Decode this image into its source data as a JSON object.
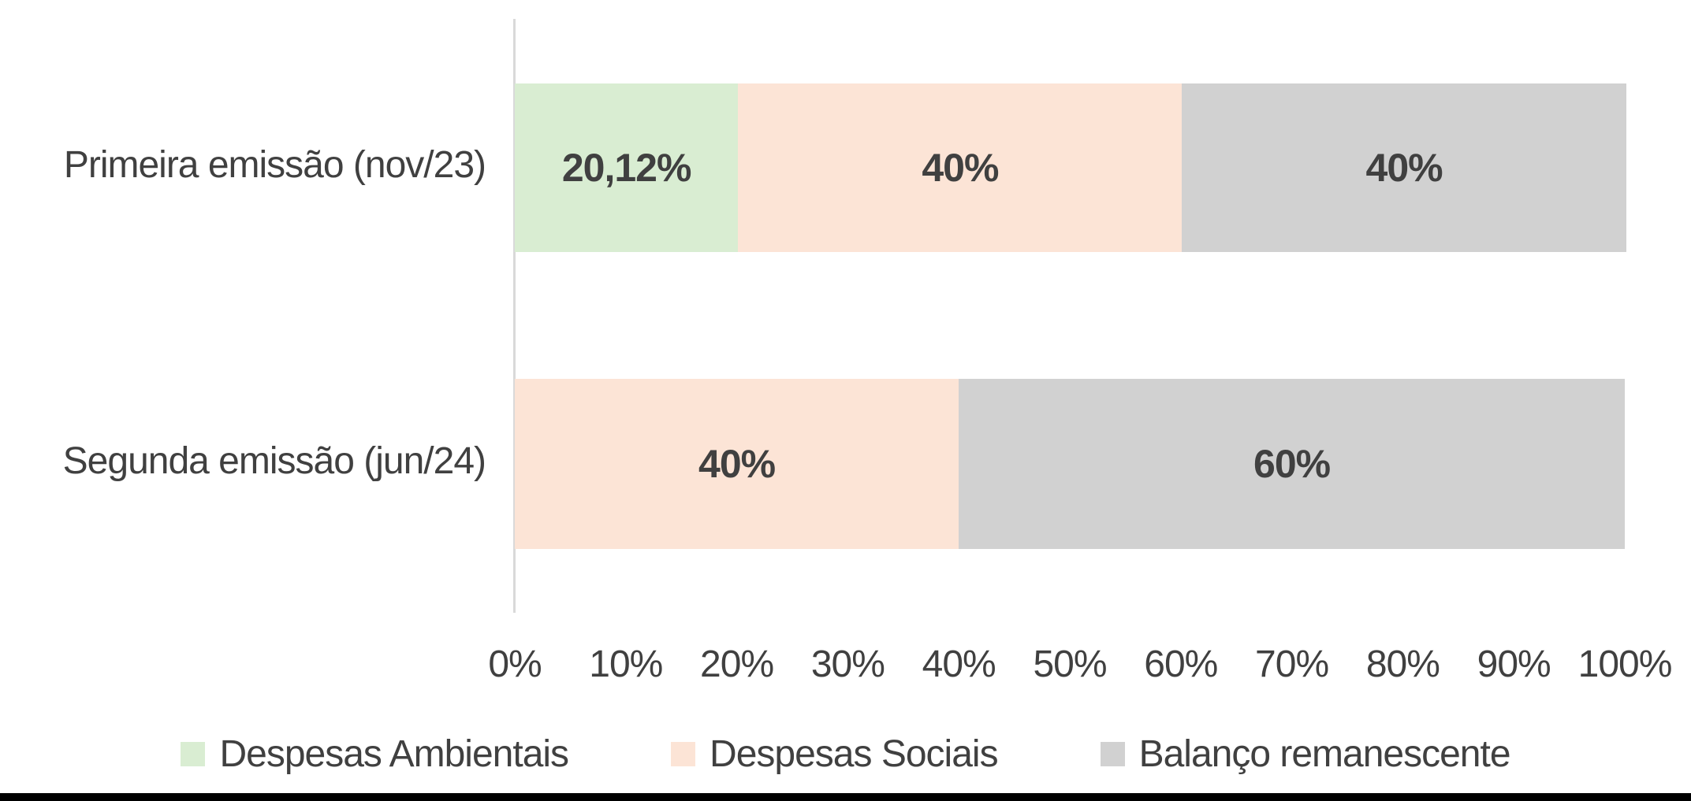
{
  "page": {
    "background_color": "#ffffff",
    "footer_bar_color": "#000000"
  },
  "chart_data": {
    "type": "bar",
    "orientation": "horizontal",
    "stacked": true,
    "categories": [
      "Primeira emissão (nov/23)",
      "Segunda emissão (jun/24)"
    ],
    "series": [
      {
        "name": "Despesas Ambientais",
        "color": "#d9edd2",
        "values": [
          20.12,
          0
        ],
        "labels": [
          "20,12%",
          ""
        ]
      },
      {
        "name": "Despesas Sociais",
        "color": "#fce4d6",
        "values": [
          40,
          40
        ],
        "labels": [
          "40%",
          "40%"
        ]
      },
      {
        "name": "Balanço remanescente",
        "color": "#d1d1d1",
        "values": [
          40,
          60
        ],
        "labels": [
          "40%",
          "60%"
        ]
      }
    ],
    "x_axis": {
      "min": 0,
      "max": 100,
      "tick_labels": [
        "0%",
        "10%",
        "20%",
        "30%",
        "40%",
        "50%",
        "60%",
        "70%",
        "80%",
        "90%",
        "100%"
      ]
    },
    "legend_position": "bottom",
    "grid": false,
    "value_label_color": "#404040",
    "text_color": "#404040",
    "axis_line_color": "#d9d9d9"
  }
}
